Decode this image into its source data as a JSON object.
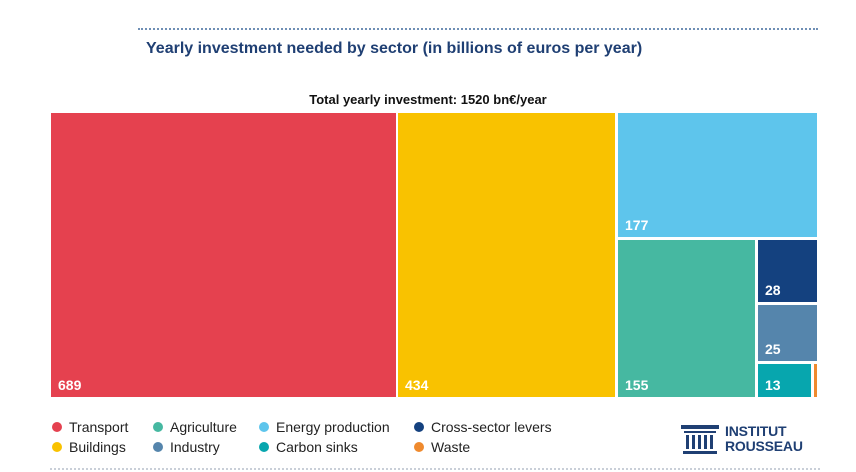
{
  "chart_data": {
    "type": "treemap",
    "title": "Yearly investment needed by sector (in billions of euros per year)",
    "subtitle": "Total yearly investment: 1520 bn€/year",
    "total": 1520,
    "series": [
      {
        "name": "Transport",
        "value": 689,
        "color": "#e5414f"
      },
      {
        "name": "Buildings",
        "value": 434,
        "color": "#f9c200"
      },
      {
        "name": "Energy production",
        "value": 177,
        "color": "#5ec5ec"
      },
      {
        "name": "Agriculture",
        "value": 155,
        "color": "#46b8a1"
      },
      {
        "name": "Cross-sector levers",
        "value": 28,
        "color": "#14417f"
      },
      {
        "name": "Industry",
        "value": 25,
        "color": "#5585ac"
      },
      {
        "name": "Carbon sinks",
        "value": 13,
        "color": "#07a6ae"
      },
      {
        "name": "Waste",
        "value": null,
        "color": "#ef8a2e"
      }
    ]
  },
  "legend": [
    {
      "label": "Transport",
      "color": "#e5414f"
    },
    {
      "label": "Agriculture",
      "color": "#46b8a1"
    },
    {
      "label": "Energy production",
      "color": "#5ec5ec"
    },
    {
      "label": "Cross-sector levers",
      "color": "#14417f"
    },
    {
      "label": "Buildings",
      "color": "#f9c200"
    },
    {
      "label": "Industry",
      "color": "#5585ac"
    },
    {
      "label": "Carbon sinks",
      "color": "#07a6ae"
    },
    {
      "label": "Waste",
      "color": "#ef8a2e"
    }
  ],
  "logo": {
    "line1": "INSTITUT",
    "line2": "ROUSSEAU",
    "color": "#1f3f73"
  }
}
